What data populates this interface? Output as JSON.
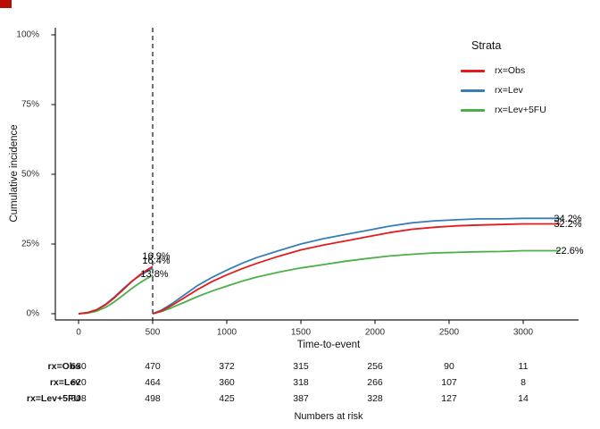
{
  "meta": {
    "corner_marker_color": "#b80d00"
  },
  "y_axis": {
    "title": "Cumulative incidence",
    "ticks": [
      "100%",
      "75%",
      "50%",
      "25%",
      "0%"
    ]
  },
  "x_axis": {
    "title": "Time-to-event",
    "ticks": [
      "0",
      "500",
      "1000",
      "1500",
      "2000",
      "2500",
      "3000"
    ]
  },
  "legend": {
    "title": "Strata",
    "items": [
      {
        "label": "rx=Obs",
        "color": "#E41A1C"
      },
      {
        "label": "rx=Lev",
        "color": "#377EB8"
      },
      {
        "label": "rx=Lev+5FU",
        "color": "#4DAF4A"
      }
    ]
  },
  "annotations": {
    "at_landmark": [
      {
        "label": "16.9%"
      },
      {
        "label": "16.4%"
      },
      {
        "label": "13.8%"
      }
    ],
    "at_end": [
      {
        "label": "34.2%"
      },
      {
        "label": "32.2%"
      },
      {
        "label": "22.6%"
      }
    ]
  },
  "risk_table": {
    "caption": "Numbers at risk",
    "rows": [
      {
        "label": "rx=Obs",
        "values": [
          "630",
          "470",
          "372",
          "315",
          "256",
          "90",
          "11"
        ]
      },
      {
        "label": "rx=Lev",
        "values": [
          "620",
          "464",
          "360",
          "318",
          "266",
          "107",
          "8"
        ]
      },
      {
        "label": "rx=Lev+5FU",
        "values": [
          "608",
          "498",
          "425",
          "387",
          "328",
          "127",
          "14"
        ]
      }
    ]
  },
  "chart_data": {
    "type": "line",
    "title": "",
    "xlabel": "Time-to-event",
    "ylabel": "Cumulative incidence",
    "xlim": [
      0,
      3329
    ],
    "ylim": [
      0,
      100
    ],
    "x_ticks": [
      0,
      500,
      1000,
      1500,
      2000,
      2500,
      3000
    ],
    "y_ticks_percent": [
      0,
      25,
      50,
      75,
      100
    ],
    "landmark_time": 500,
    "legend_position": "inside-top-right",
    "grid": false,
    "series": [
      {
        "name": "rx=Lev+5FU",
        "color": "#4DAF4A",
        "estimate_at_500": 13.8,
        "estimate_at_end": 22.6,
        "segments": [
          {
            "x": [
              0,
              60,
              120,
              180,
              240,
              300,
              360,
              420,
              470,
              500
            ],
            "y": [
              0,
              0.2,
              0.9,
              2.2,
              4.2,
              6.6,
              9.1,
              11.3,
              12.9,
              13.8
            ]
          },
          {
            "x": [
              500,
              560,
              630,
              710,
              800,
              900,
              1000,
              1100,
              1200,
              1350,
              1500,
              1650,
              1800,
              1950,
              2100,
              2250,
              2400,
              2550,
              2700,
              2850,
              3000,
              3250
            ],
            "y": [
              0,
              0.8,
              2.2,
              4.0,
              6.1,
              8.1,
              9.9,
              11.6,
              13.1,
              14.9,
              16.4,
              17.6,
              18.8,
              19.8,
              20.7,
              21.3,
              21.8,
              22.0,
              22.2,
              22.3,
              22.6,
              22.6
            ]
          }
        ]
      },
      {
        "name": "rx=Lev",
        "color": "#377EB8",
        "estimate_at_500": 16.4,
        "estimate_at_end": 34.2,
        "segments": [
          {
            "x": [
              0,
              60,
              120,
              180,
              240,
              300,
              360,
              420,
              470,
              500
            ],
            "y": [
              0,
              0.4,
              1.4,
              3.3,
              5.9,
              8.9,
              11.7,
              13.9,
              15.4,
              16.4
            ]
          },
          {
            "x": [
              500,
              560,
              630,
              710,
              800,
              900,
              1000,
              1100,
              1200,
              1350,
              1500,
              1650,
              1800,
              1950,
              2100,
              2250,
              2400,
              2550,
              2700,
              2850,
              3000,
              3250
            ],
            "y": [
              0,
              1.3,
              3.6,
              6.6,
              10.0,
              13.0,
              15.6,
              18.0,
              20.1,
              22.6,
              25.0,
              26.9,
              28.4,
              29.9,
              31.4,
              32.6,
              33.3,
              33.7,
              34.0,
              34.0,
              34.2,
              34.2
            ]
          }
        ]
      },
      {
        "name": "rx=Obs",
        "color": "#E41A1C",
        "estimate_at_500": 16.9,
        "estimate_at_end": 32.2,
        "segments": [
          {
            "x": [
              0,
              60,
              120,
              180,
              240,
              300,
              360,
              420,
              470,
              500
            ],
            "y": [
              0,
              0.4,
              1.3,
              3.1,
              5.6,
              8.6,
              11.6,
              14.2,
              16.0,
              16.9
            ]
          },
          {
            "x": [
              500,
              560,
              630,
              710,
              800,
              900,
              1000,
              1100,
              1200,
              1350,
              1500,
              1650,
              1800,
              1950,
              2100,
              2250,
              2400,
              2550,
              2700,
              2850,
              3000,
              3250
            ],
            "y": [
              0,
              1.0,
              3.0,
              5.6,
              8.6,
              11.5,
              13.9,
              16.1,
              18.0,
              20.6,
              22.9,
              24.6,
              26.1,
              27.6,
              29.1,
              30.3,
              31.0,
              31.5,
              31.8,
              32.0,
              32.2,
              32.2
            ]
          }
        ]
      }
    ]
  }
}
